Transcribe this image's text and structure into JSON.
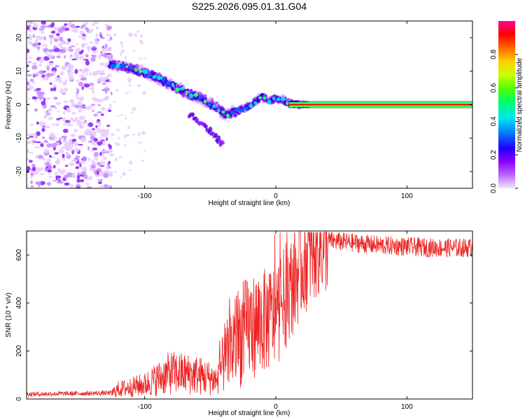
{
  "title": "S225.2026.095.01.31.G04",
  "chart_data": [
    {
      "type": "heatmap",
      "xlabel": "Height of straight line (km)",
      "ylabel": "Frequency (Hz)",
      "xlim": [
        -190,
        150
      ],
      "ylim": [
        -25,
        25
      ],
      "xticks": [
        -100,
        0,
        100
      ],
      "yticks": [
        -20,
        -10,
        0,
        10,
        20
      ],
      "xtick_labels": [
        "-100",
        "0",
        "100"
      ],
      "ytick_labels": [
        "-20",
        "-10",
        "0",
        "10",
        "20"
      ],
      "colorbar": {
        "label": "Normalized spectral amplitude",
        "range": [
          0,
          1
        ],
        "ticks": [
          0,
          0.2,
          0.4,
          0.6,
          0.8
        ],
        "tick_labels": [
          "0.0",
          "0.2",
          "0.4",
          "0.6",
          "0.8"
        ],
        "colors": [
          "#f0e0ff",
          "#8800ff",
          "#0000ff",
          "#00ccff",
          "#00ff66",
          "#ccff00",
          "#ff8800",
          "#ff0000",
          "#ff00aa"
        ]
      },
      "ridge": {
        "x": [
          -125,
          -115,
          -105,
          -95,
          -85,
          -75,
          -65,
          -55,
          -45,
          -38,
          -30,
          -20,
          -15,
          -10,
          -5,
          0,
          5,
          10,
          20,
          150
        ],
        "y": [
          12,
          11.5,
          10,
          9,
          7,
          5,
          3,
          1.5,
          -1,
          -3,
          -2,
          -0.5,
          1,
          2.5,
          1,
          2,
          1.5,
          0.5,
          0,
          0
        ]
      },
      "secondary_ridge": {
        "x": [
          -65,
          -55,
          -45,
          -40
        ],
        "y": [
          -3,
          -6,
          -10,
          -12
        ]
      },
      "open_loop_x_range": [
        -190,
        -125
      ]
    },
    {
      "type": "line",
      "xlabel": "Height of straight line (km)",
      "ylabel": "SNR (10 * v/v)",
      "xlim": [
        -190,
        150
      ],
      "ylim": [
        0,
        700
      ],
      "xticks": [
        -100,
        0,
        100
      ],
      "yticks": [
        0,
        200,
        400,
        600
      ],
      "xtick_labels": [
        "-100",
        "0",
        "100"
      ],
      "ytick_labels": [
        "0",
        "200",
        "400",
        "600"
      ],
      "color": "#ee2222",
      "envelope": {
        "x": [
          -190,
          -125,
          -120,
          -100,
          -80,
          -60,
          -45,
          -40,
          -30,
          -20,
          -10,
          0,
          10,
          20,
          30,
          40,
          60,
          80,
          100,
          120,
          150
        ],
        "y": [
          20,
          25,
          40,
          60,
          110,
          100,
          80,
          150,
          250,
          300,
          320,
          350,
          450,
          560,
          630,
          660,
          650,
          640,
          635,
          630,
          630
        ]
      }
    }
  ]
}
